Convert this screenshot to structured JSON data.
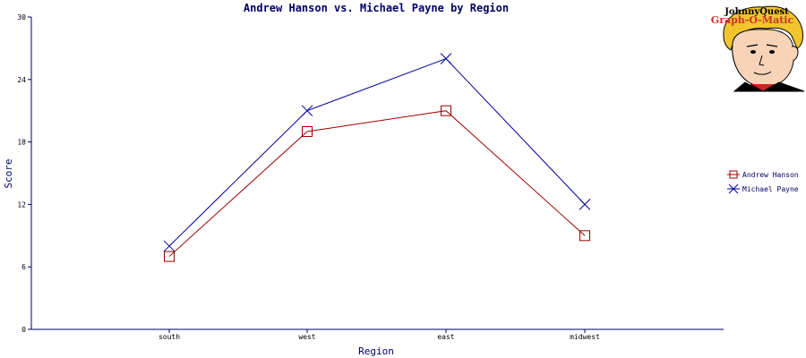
{
  "chart_data": {
    "type": "line",
    "title": "Andrew Hanson vs. Michael Payne by Region",
    "xlabel": "Region",
    "ylabel": "Score",
    "categories": [
      "south",
      "west",
      "east",
      "midwest"
    ],
    "ylim": [
      0,
      30
    ],
    "yticks": [
      0,
      6,
      12,
      18,
      24,
      30
    ],
    "grid": false,
    "legend_position": "right",
    "series": [
      {
        "name": "Andrew Hanson",
        "values": [
          7,
          19,
          21,
          9
        ],
        "color": "#990000",
        "marker": "square"
      },
      {
        "name": "Michael Payne",
        "values": [
          8,
          21,
          26,
          12
        ],
        "color": "#000099",
        "marker": "x"
      }
    ]
  },
  "branding": {
    "line1": "JohnnyQuest",
    "line2": "Graph-O-Matic",
    "logo_icon": "cartoon-boy-face-icon"
  },
  "colors": {
    "axis": "#000066",
    "background": "#ffffff"
  }
}
